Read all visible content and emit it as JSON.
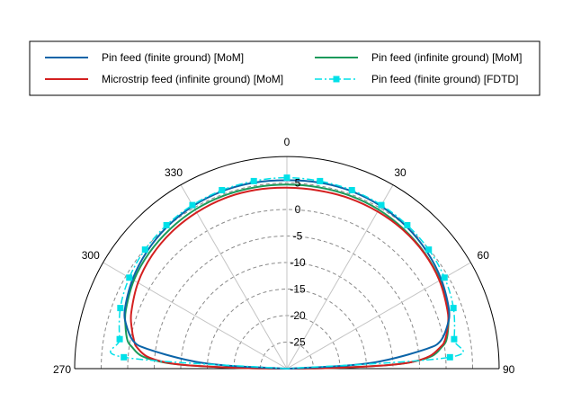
{
  "chart_data": {
    "type": "line",
    "subtype": "polar-half",
    "title": "",
    "angle_ticks": [
      "270",
      "300",
      "330",
      "0",
      "30",
      "60",
      "90"
    ],
    "angle_tick_values": [
      -90,
      -60,
      -30,
      0,
      30,
      60,
      90
    ],
    "radial_range": [
      -30,
      10
    ],
    "radial_ticks": [
      "5",
      "0",
      "-5",
      "-10",
      "-15",
      "-20",
      "-25"
    ],
    "radial_tick_values": [
      5,
      0,
      -5,
      -10,
      -15,
      -20,
      -25
    ],
    "grid": true,
    "legend_position": "top",
    "series": [
      {
        "name": "Pin feed (finite ground) [MoM]",
        "color": "#0a64a8",
        "style": "solid",
        "angles": [
          -90,
          -87,
          -85,
          -82,
          -80,
          -75,
          -70,
          -60,
          -50,
          -40,
          -30,
          -20,
          -10,
          0,
          10,
          20,
          30,
          40,
          50,
          60,
          70,
          75,
          80,
          82,
          85,
          87,
          90
        ],
        "values": [
          -30,
          -18,
          -11,
          -3.5,
          -0.7,
          1.3,
          2.5,
          3.6,
          4.4,
          5.0,
          5.4,
          5.6,
          5.6,
          5.5,
          5.6,
          5.6,
          5.4,
          5.0,
          4.4,
          3.6,
          2.5,
          1.3,
          -0.7,
          -3.5,
          -11,
          -18,
          -30
        ]
      },
      {
        "name": "Pin feed (infinite ground) [MoM]",
        "color": "#1a9a5a",
        "style": "solid",
        "angles": [
          -90,
          -89.5,
          -89,
          -88,
          -87,
          -85,
          -82,
          -80,
          -75,
          -70,
          -60,
          -50,
          -40,
          -30,
          -20,
          -10,
          0,
          10,
          20,
          30,
          40,
          50,
          60,
          70,
          75,
          80,
          82,
          85,
          87,
          88,
          89,
          89.5,
          90
        ],
        "values": [
          -30,
          -26,
          -20,
          -11,
          -6.5,
          -2.5,
          -0.5,
          0.5,
          1.5,
          2.3,
          3.3,
          3.9,
          4.3,
          4.6,
          4.7,
          4.7,
          4.7,
          4.7,
          4.7,
          4.6,
          4.3,
          3.9,
          3.3,
          2.3,
          1.5,
          0.5,
          -0.5,
          -2.5,
          -6.5,
          -11,
          -20,
          -26,
          -30
        ]
      },
      {
        "name": "Microstrip feed (infinite ground) [MoM]",
        "color": "#d42020",
        "style": "solid",
        "angles": [
          -90,
          -89.5,
          -89,
          -88,
          -87,
          -85,
          -82,
          -80,
          -75,
          -70,
          -60,
          -50,
          -40,
          -30,
          -20,
          -10,
          0,
          10,
          20,
          30,
          40,
          50,
          60,
          70,
          75,
          80,
          82,
          85,
          87,
          88,
          89,
          89.5,
          90
        ],
        "values": [
          -30,
          -26,
          -20,
          -11,
          -7,
          -3.5,
          -1.5,
          -0.8,
          0.3,
          1.2,
          2.4,
          3.2,
          3.7,
          4.0,
          4.2,
          4.2,
          4.1,
          4.1,
          4.2,
          4.2,
          4.1,
          3.8,
          3.2,
          2.2,
          1.4,
          0.2,
          -0.8,
          -3,
          -6.5,
          -11,
          -20,
          -26,
          -30
        ]
      },
      {
        "name": "Pin feed (finite ground) [FDTD]",
        "color": "#00e0e8",
        "style": "dash-dot",
        "marker": "square",
        "angles": [
          -90,
          -86,
          -80,
          -70,
          -60,
          -50,
          -40,
          -30,
          -20,
          -10,
          0,
          10,
          20,
          30,
          40,
          50,
          60,
          70,
          80,
          86,
          90
        ],
        "values": [
          -30,
          0.8,
          2.0,
          3.4,
          4.3,
          4.9,
          5.3,
          5.6,
          5.8,
          5.9,
          6.0,
          5.9,
          5.8,
          5.6,
          5.3,
          4.9,
          4.3,
          3.4,
          2.0,
          0.8,
          -30
        ]
      }
    ]
  }
}
